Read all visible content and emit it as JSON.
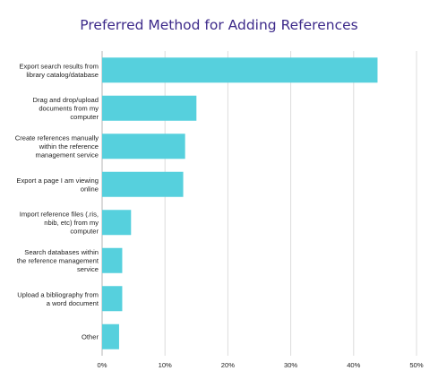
{
  "chart_data": {
    "type": "bar",
    "orientation": "horizontal",
    "title": "Preferred Method for Adding References",
    "categories": [
      [
        "Export search results from",
        "library catalog/database"
      ],
      [
        "Drag and drop/upload",
        "documents from my",
        "computer"
      ],
      [
        "Create references manually",
        "within the reference",
        "management service"
      ],
      [
        "Export a page I am viewing",
        "online"
      ],
      [
        "Import reference files (.ris,",
        "nbib, etc) from my",
        "computer"
      ],
      [
        "Search databases within",
        "the reference management",
        "service"
      ],
      [
        "Upload a bibliography from",
        "a word document"
      ],
      [
        "Other"
      ]
    ],
    "values": [
      43.8,
      15.0,
      13.2,
      12.9,
      4.6,
      3.2,
      3.2,
      2.7
    ],
    "xlim": [
      0,
      50
    ],
    "xticks": [
      "0%",
      "10%",
      "20%",
      "30%",
      "40%",
      "50%"
    ],
    "grid": true,
    "bar_color": "#56d0dd",
    "title_color": "#3d2a8a"
  }
}
